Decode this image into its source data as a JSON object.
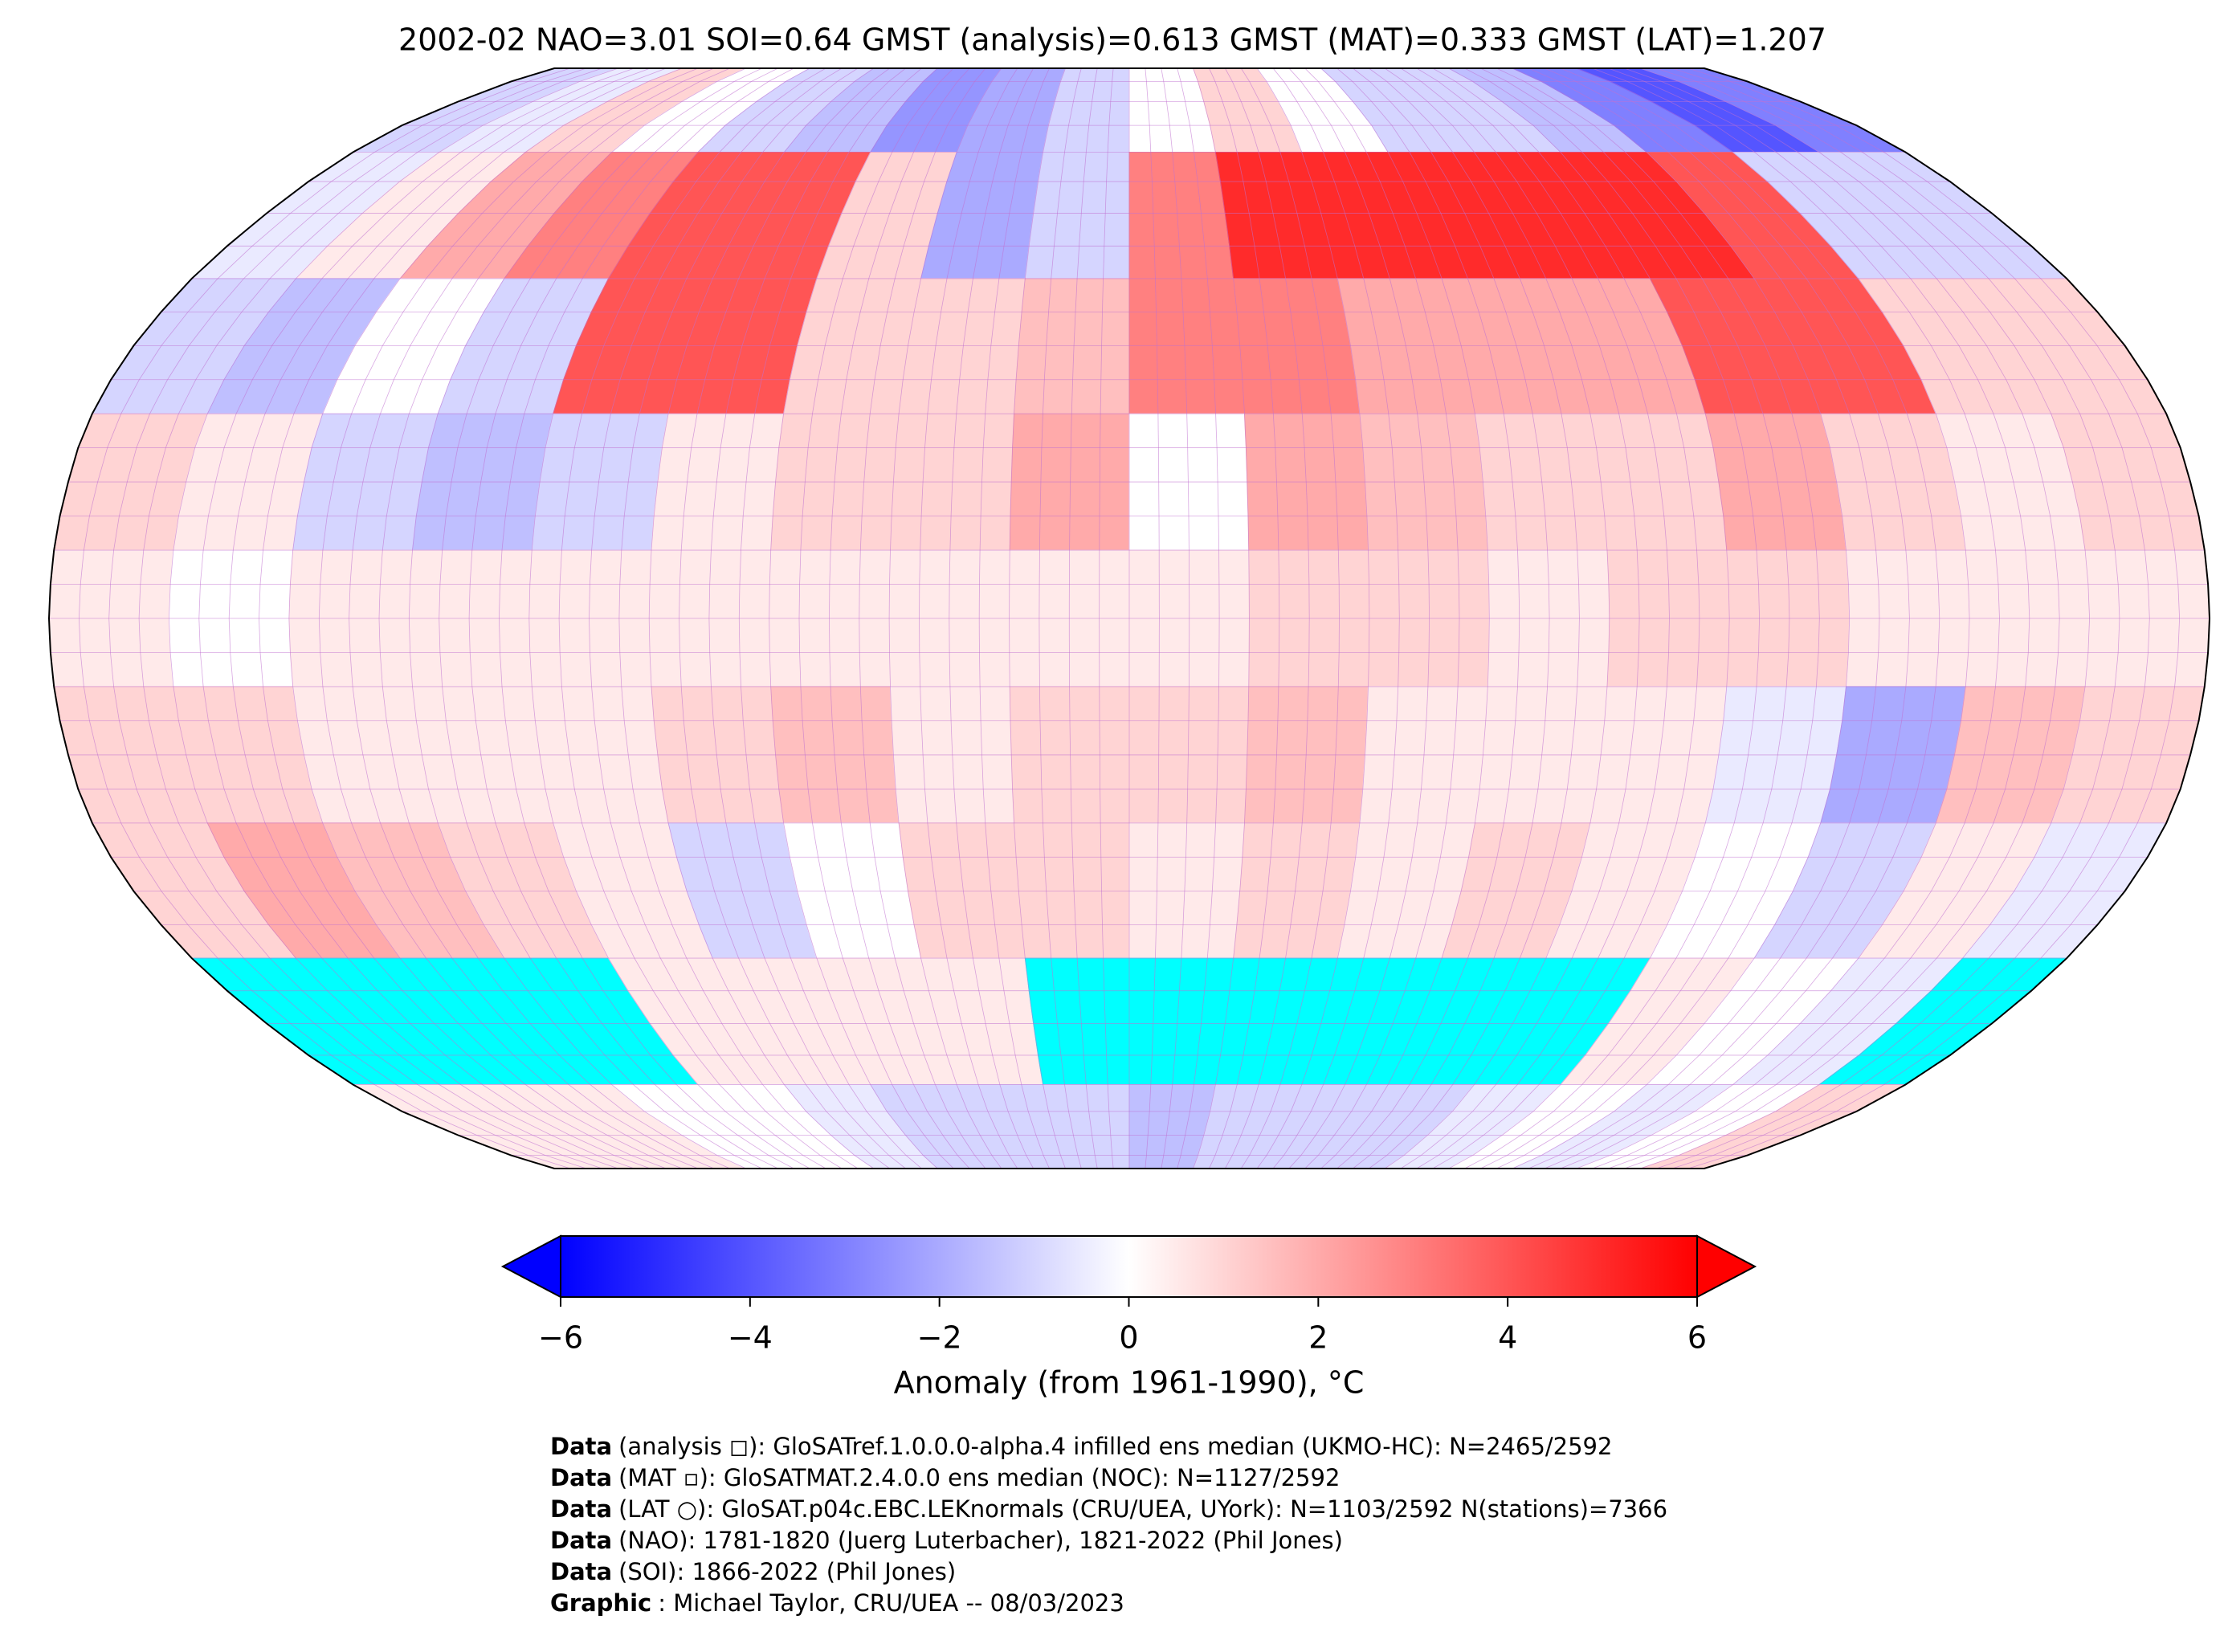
{
  "chart_data": {
    "type": "map",
    "title": "2002-02 NAO=3.01 SOI=0.64 GMST (analysis)=0.613 GMST (MAT)=0.333 GMST (LAT)=1.207",
    "values": [
      [
        -1,
        -0.5,
        1,
        0,
        -1,
        -1.5,
        -2.5,
        -2,
        -1,
        0,
        1,
        0,
        -1,
        -1,
        -1.5,
        -3,
        -4,
        -3
      ],
      [
        -0.5,
        0.5,
        2,
        3,
        4,
        4,
        1,
        -2,
        -1,
        3,
        5,
        5,
        5,
        5,
        5,
        4,
        -1,
        -1
      ],
      [
        -1,
        -1.5,
        0,
        -1,
        4,
        4,
        1,
        1,
        1.5,
        3,
        3,
        2,
        2,
        2,
        4,
        4,
        1,
        1
      ],
      [
        1,
        0.5,
        -1,
        -1.5,
        -1,
        0.5,
        1,
        1,
        2,
        0,
        2,
        1.5,
        1,
        1,
        2,
        1,
        0.5,
        1
      ],
      [
        0.5,
        0,
        0.5,
        0.5,
        0.5,
        0.5,
        0.5,
        0.5,
        0.5,
        0.5,
        1,
        1,
        0.5,
        1,
        1,
        0.5,
        0.5,
        0.5
      ],
      [
        1,
        1,
        0.5,
        0.5,
        0.5,
        1,
        1.5,
        0.5,
        1,
        1,
        1.5,
        0.5,
        0.5,
        0.5,
        -0.5,
        -2,
        1.5,
        1
      ],
      [
        1,
        2,
        1.5,
        1,
        0.5,
        -1,
        0,
        1,
        1,
        0.5,
        1,
        0.5,
        1,
        0.5,
        0,
        -1,
        0.5,
        -0.5
      ],
      [
        null,
        null,
        null,
        null,
        0.5,
        0.5,
        0.5,
        0.5,
        null,
        null,
        null,
        null,
        null,
        null,
        0.5,
        0,
        -0.5,
        null
      ],
      [
        0.5,
        0.5,
        0.5,
        0,
        0,
        -0.5,
        -1,
        -1,
        -1,
        -1.5,
        -1,
        -1,
        -1,
        -0.5,
        0,
        -0.5,
        0,
        1
      ]
    ],
    "cmap": [
      "#0000ff",
      "#ffffff",
      "#ff0000"
    ],
    "ice_color": "#00ffff",
    "colorbar": {
      "label": "Anomaly (from 1961-1990), °C",
      "lim": [
        -6,
        6
      ],
      "ticks": [
        {
          "value": -6,
          "label": "−6"
        },
        {
          "value": -4,
          "label": "−4"
        },
        {
          "value": -2,
          "label": "−2"
        },
        0,
        2,
        4,
        6
      ]
    },
    "credits": [
      {
        "bold": "Data",
        "text": "(analysis ◻): GloSATref.1.0.0.0-alpha.4 infilled ens median (UKMO-HC): N=2465/2592"
      },
      {
        "bold": "Data",
        "text": "(MAT ▫): GloSATMAT.2.4.0.0 ens median (NOC): N=1127/2592"
      },
      {
        "bold": "Data",
        "text": "(LAT ○): GloSAT.p04c.EBC.LEKnormals (CRU/UEA, UYork): N=1103/2592 N(stations)=7366"
      },
      {
        "bold": "Data",
        "text": "(NAO): 1781-1820 (Juerg Luterbacher), 1821-2022 (Phil Jones)"
      },
      {
        "bold": "Data",
        "text": "(SOI): 1866-2022 (Phil Jones)"
      },
      {
        "bold": "Graphic",
        "text": ": Michael Taylor, CRU/UEA -- 08/03/2023"
      }
    ]
  }
}
